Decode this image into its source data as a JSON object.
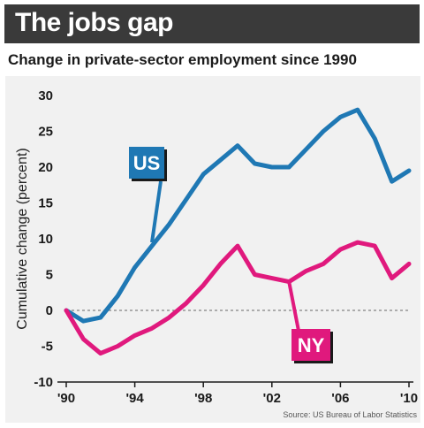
{
  "chart_data": {
    "type": "line",
    "title": "The jobs gap",
    "subtitle": "Change in private-sector employment since 1990",
    "ylabel": "Cumulative change (percent)",
    "xlabel": "",
    "source": "Source: US Bureau of Labor Statistics",
    "ylim": [
      -10,
      30
    ],
    "xlim": [
      1990,
      2010
    ],
    "y_ticks": [
      30,
      25,
      20,
      15,
      10,
      5,
      0,
      -5,
      -10
    ],
    "x_ticks": [
      {
        "value": 1990,
        "label": "'90"
      },
      {
        "value": 1994,
        "label": "'94"
      },
      {
        "value": 1998,
        "label": "'98"
      },
      {
        "value": 2002,
        "label": "'02"
      },
      {
        "value": 2006,
        "label": "'06"
      },
      {
        "value": 2010,
        "label": "'10"
      }
    ],
    "zero_line": "dashed",
    "grid": false,
    "series": [
      {
        "name": "US",
        "color": "#1f78b4",
        "x": [
          1990,
          1991,
          1992,
          1993,
          1994,
          1995,
          1996,
          1997,
          1998,
          1999,
          2000,
          2001,
          2002,
          2003,
          2004,
          2005,
          2006,
          2007,
          2008,
          2009,
          2010
        ],
        "y": [
          0,
          -1.5,
          -1,
          2,
          6,
          9,
          12,
          15.5,
          19,
          21,
          23,
          20.5,
          20,
          20,
          22.5,
          25,
          27,
          28,
          24,
          18,
          19.5
        ]
      },
      {
        "name": "NY",
        "color": "#e0197d",
        "x": [
          1990,
          1991,
          1992,
          1993,
          1994,
          1995,
          1996,
          1997,
          1998,
          1999,
          2000,
          2001,
          2002,
          2003,
          2004,
          2005,
          2006,
          2007,
          2008,
          2009,
          2010
        ],
        "y": [
          0,
          -4,
          -6,
          -5,
          -3.5,
          -2.5,
          -1,
          1,
          3.5,
          6.5,
          9,
          5,
          4.5,
          4,
          5.5,
          6.5,
          8.5,
          9.5,
          9,
          4.5,
          6.5
        ]
      }
    ]
  }
}
